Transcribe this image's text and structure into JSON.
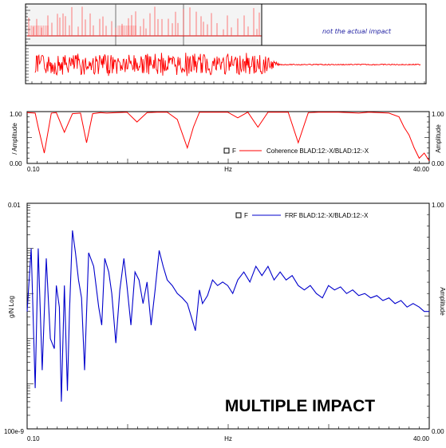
{
  "colors": {
    "time": "#ff0000",
    "coherence": "#ff0000",
    "frf": "#0000cc",
    "axis": "#000000",
    "time_bg_top": "#f4f4f4"
  },
  "annotations": {
    "top_note": "not the actual impact",
    "watermark": "MULTIPLE IMPACT"
  },
  "chart_data": [
    {
      "type": "line",
      "subtype": "time-history-strip",
      "series": [
        {
          "pattern": "multiple impulse spikes"
        }
      ]
    },
    {
      "type": "line",
      "subtype": "time-history-strip",
      "series": [
        {
          "pattern": "noisy random response decaying to flat"
        }
      ]
    },
    {
      "type": "line",
      "ylabel": "/ Amplitude",
      "right_ylabel": "Amplitude",
      "xlabel": "Hz",
      "xlim": [
        0.1,
        40.0
      ],
      "ylim": [
        0.0,
        1.0
      ],
      "x_ticks": [
        "0.10",
        "40.00"
      ],
      "y_ticks": [
        "1.00",
        "0.00"
      ],
      "right_y_ticks": [
        "1.00",
        "0.00"
      ],
      "legend": {
        "marker": "F",
        "label": "Coherence BLAD:12:-X/BLAD:12:-X",
        "placement": "lower-right"
      },
      "series": [
        {
          "name": "Coherence BLAD:12:-X/BLAD:12:-X",
          "x": [
            0.1,
            0.9,
            1.2,
            1.8,
            2.5,
            3.0,
            3.8,
            4.6,
            5.4,
            6.0,
            6.6,
            7.4,
            8.0,
            9.0,
            10.0,
            11.0,
            12.0,
            13.0,
            14.0,
            15.0,
            16.0,
            16.6,
            17.2,
            18.0,
            19.0,
            20.0,
            21.0,
            22.0,
            23.0,
            24.0,
            25.0,
            26.0,
            27.0,
            28.0,
            29.0,
            30.0,
            31.0,
            32.0,
            33.0,
            34.0,
            35.0,
            36.0,
            37.0,
            37.5,
            38.0,
            38.5,
            39.0,
            39.5,
            40.0
          ],
          "y": [
            0.98,
            0.97,
            0.7,
            0.2,
            0.97,
            0.98,
            0.6,
            0.96,
            0.97,
            0.4,
            0.96,
            0.98,
            0.97,
            0.98,
            0.99,
            0.8,
            0.98,
            0.99,
            0.99,
            0.85,
            0.3,
            0.7,
            0.99,
            0.99,
            0.99,
            0.99,
            0.88,
            0.99,
            0.7,
            0.99,
            0.99,
            0.99,
            0.4,
            0.98,
            0.99,
            0.99,
            0.99,
            0.98,
            0.97,
            0.99,
            0.98,
            0.97,
            0.9,
            0.7,
            0.55,
            0.3,
            0.1,
            0.2,
            0.05
          ]
        }
      ]
    },
    {
      "type": "line",
      "ylabel": "g/N Log",
      "right_ylabel": "Amplitude",
      "xlabel": "Hz",
      "xlim": [
        0.1,
        40.0
      ],
      "ylim": [
        1e-07,
        0.01
      ],
      "yscale": "log",
      "x_ticks": [
        "0.10",
        "40.00"
      ],
      "y_ticks": [
        "0.01",
        "100e-9"
      ],
      "right_y_ticks": [
        "1.00",
        "0.00"
      ],
      "legend": {
        "marker": "F",
        "label": "FRF BLAD:12:-X/BLAD:12:-X",
        "placement": "top-right"
      },
      "series": [
        {
          "name": "FRF BLAD:12:-X/BLAD:12:-X",
          "x": [
            0.1,
            0.5,
            0.9,
            1.2,
            1.6,
            2.0,
            2.4,
            2.8,
            3.0,
            3.3,
            3.5,
            3.8,
            4.1,
            4.3,
            4.6,
            4.9,
            5.2,
            5.5,
            5.8,
            6.2,
            6.7,
            7.2,
            7.5,
            7.8,
            8.2,
            8.5,
            8.9,
            9.3,
            9.7,
            10.0,
            10.4,
            10.8,
            11.2,
            11.6,
            12.0,
            12.4,
            12.8,
            13.2,
            13.6,
            14.0,
            14.5,
            15.0,
            15.5,
            16.0,
            16.4,
            16.8,
            17.2,
            17.5,
            18.0,
            18.5,
            19.0,
            19.5,
            20.0,
            20.5,
            21.0,
            21.6,
            22.2,
            22.8,
            23.4,
            24.0,
            24.6,
            25.2,
            25.8,
            26.4,
            27.0,
            27.6,
            28.2,
            28.8,
            29.4,
            30.0,
            30.6,
            31.2,
            31.8,
            32.4,
            33.0,
            33.6,
            34.2,
            34.8,
            35.4,
            36.0,
            36.6,
            37.2,
            37.8,
            38.4,
            39.0,
            39.5,
            40.0
          ],
          "y": [
            4e-05,
            0.001,
            8e-07,
            0.001,
            2e-06,
            0.0006,
            1e-05,
            6e-06,
            0.00015,
            5e-05,
            4e-07,
            0.00015,
            7e-07,
            4e-05,
            0.0025,
            0.0008,
            0.0002,
            8e-05,
            2e-06,
            0.0008,
            0.0004,
            5e-05,
            2e-05,
            0.0006,
            0.0003,
            0.0001,
            8e-06,
            0.00012,
            0.0006,
            0.00015,
            2e-05,
            0.0003,
            0.0002,
            6e-05,
            0.00018,
            2e-05,
            0.00012,
            0.0009,
            0.0004,
            0.0002,
            0.00015,
            0.0001,
            8e-05,
            6e-05,
            3e-05,
            1.5e-05,
            0.00012,
            6e-05,
            9e-05,
            0.0002,
            0.00015,
            0.00018,
            0.00015,
            0.0001,
            0.0002,
            0.0003,
            0.00018,
            0.0004,
            0.00025,
            0.0004,
            0.0002,
            0.0003,
            0.0002,
            0.00025,
            0.00015,
            0.00012,
            0.00015,
            0.0001,
            8e-05,
            0.00015,
            0.00012,
            0.00014,
            0.0001,
            0.00012,
            9e-05,
            0.0001,
            8e-05,
            9e-05,
            7e-05,
            8e-05,
            6e-05,
            7e-05,
            5e-05,
            6e-05,
            5e-05,
            4e-05,
            4e-05
          ]
        }
      ]
    }
  ]
}
